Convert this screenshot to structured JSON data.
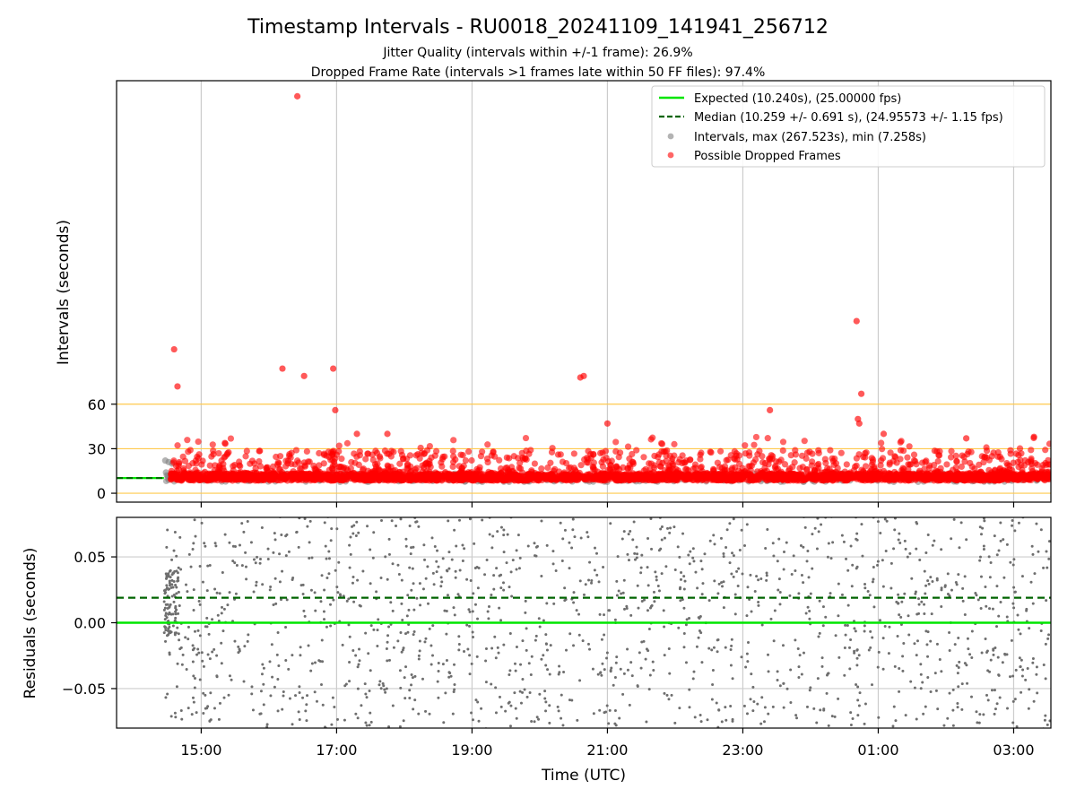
{
  "chart_data": {
    "type": "scatter",
    "title": "Timestamp Intervals - RU0018_20241109_141941_256712",
    "subtitle_lines": [
      "Jitter Quality (intervals within +/-1 frame): 26.9%",
      "Dropped Frame Rate (intervals >1 frames late within 50 FF files): 97.4%"
    ],
    "xlabel": "Time (UTC)",
    "x_ticks": [
      "15:00",
      "17:00",
      "19:00",
      "21:00",
      "23:00",
      "01:00",
      "03:00"
    ],
    "x_tick_hours": [
      15,
      17,
      19,
      21,
      23,
      25,
      27
    ],
    "xlim_hours": [
      13.75,
      27.55
    ],
    "top_panel": {
      "ylabel": "Intervals (seconds)",
      "ylim": [
        -6,
        278
      ],
      "y_ticks": [
        0,
        30,
        60
      ],
      "reference_lines": [
        0,
        30,
        60
      ],
      "expected_line": 10.24,
      "median_line": 10.259,
      "legend": [
        "Expected (10.240s), (25.00000 fps)",
        "Median (10.259 +/- 0.691 s), (24.95573 +/- 1.15 fps)",
        "Intervals, max (267.523s), min (7.258s)",
        "Possible Dropped Frames"
      ],
      "max_interval": 267.523,
      "min_interval": 7.258,
      "outliers": [
        {
          "x": 14.6,
          "y": 97
        },
        {
          "x": 14.65,
          "y": 72
        },
        {
          "x": 16.2,
          "y": 84
        },
        {
          "x": 16.42,
          "y": 267.5
        },
        {
          "x": 16.52,
          "y": 79
        },
        {
          "x": 16.95,
          "y": 84
        },
        {
          "x": 16.98,
          "y": 56
        },
        {
          "x": 17.3,
          "y": 40
        },
        {
          "x": 17.75,
          "y": 40
        },
        {
          "x": 20.6,
          "y": 78
        },
        {
          "x": 20.65,
          "y": 79
        },
        {
          "x": 21.0,
          "y": 47
        },
        {
          "x": 23.4,
          "y": 56
        },
        {
          "x": 24.7,
          "y": 50
        },
        {
          "x": 24.72,
          "y": 47
        },
        {
          "x": 24.68,
          "y": 116
        },
        {
          "x": 24.75,
          "y": 67
        },
        {
          "x": 25.08,
          "y": 40
        },
        {
          "x": 26.3,
          "y": 37
        },
        {
          "x": 27.3,
          "y": 38
        }
      ]
    },
    "bottom_panel": {
      "ylabel": "Residuals (seconds)",
      "ylim": [
        -0.08,
        0.08
      ],
      "y_ticks": [
        0.05,
        0.0,
        -0.05
      ],
      "y_tick_labels": [
        "0.05",
        "0.00",
        "−0.05"
      ],
      "expected_line": 0.0,
      "median_line": 0.019
    },
    "colors": {
      "expected": "#00e600",
      "median": "#006400",
      "intervals": "#808080",
      "dropped": "#ff0000",
      "reference": "#ffc94d",
      "grid": "#cccccc"
    }
  }
}
